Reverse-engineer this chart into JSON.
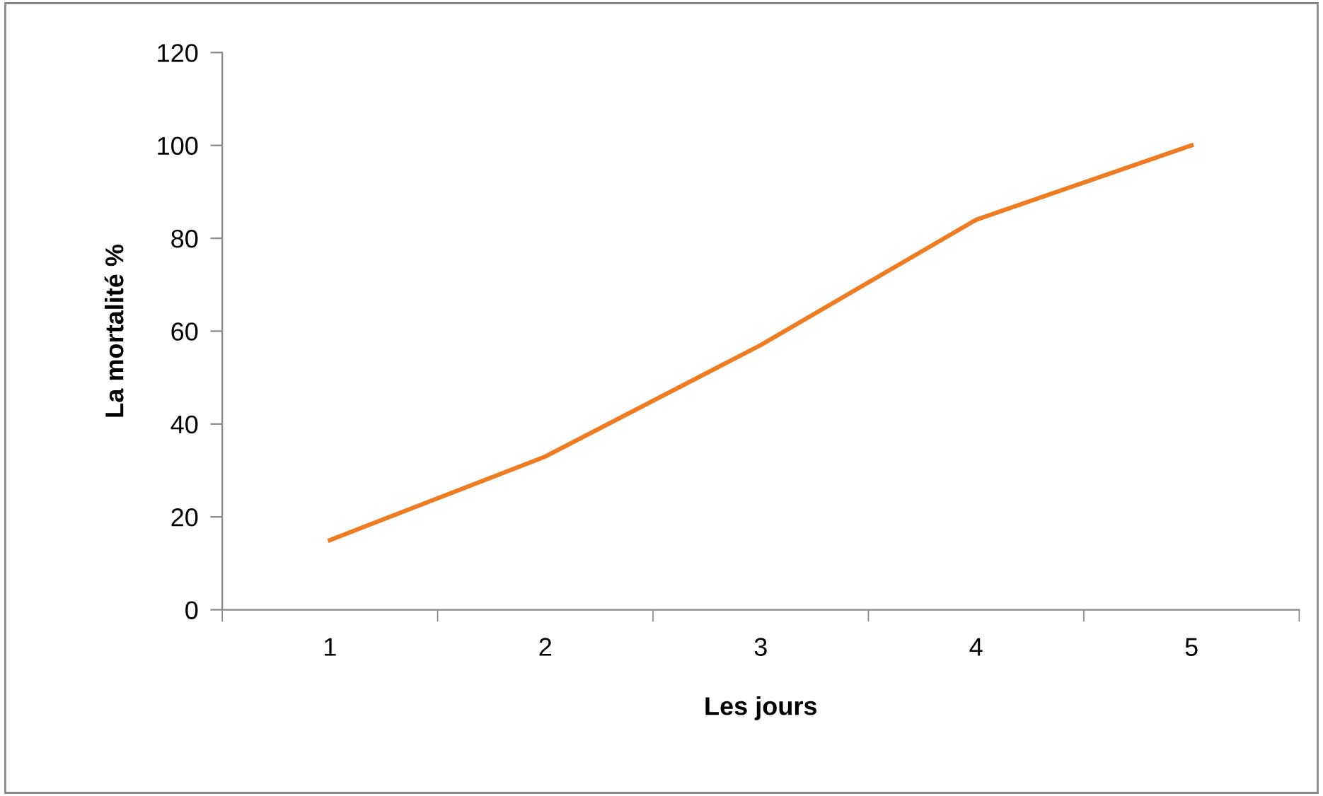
{
  "chart_data": {
    "type": "line",
    "xlabel": "Les jours",
    "ylabel": "La mortalité %",
    "categories": [
      "1",
      "2",
      "3",
      "4",
      "5"
    ],
    "series": [
      {
        "color": "#f07c22",
        "values": [
          15,
          33,
          57,
          84,
          100
        ]
      }
    ],
    "ylim": [
      0,
      120
    ],
    "yticks": [
      0,
      20,
      40,
      60,
      80,
      100,
      120
    ],
    "grid": false,
    "legend": false,
    "marker": "none",
    "line_style": "solid"
  }
}
